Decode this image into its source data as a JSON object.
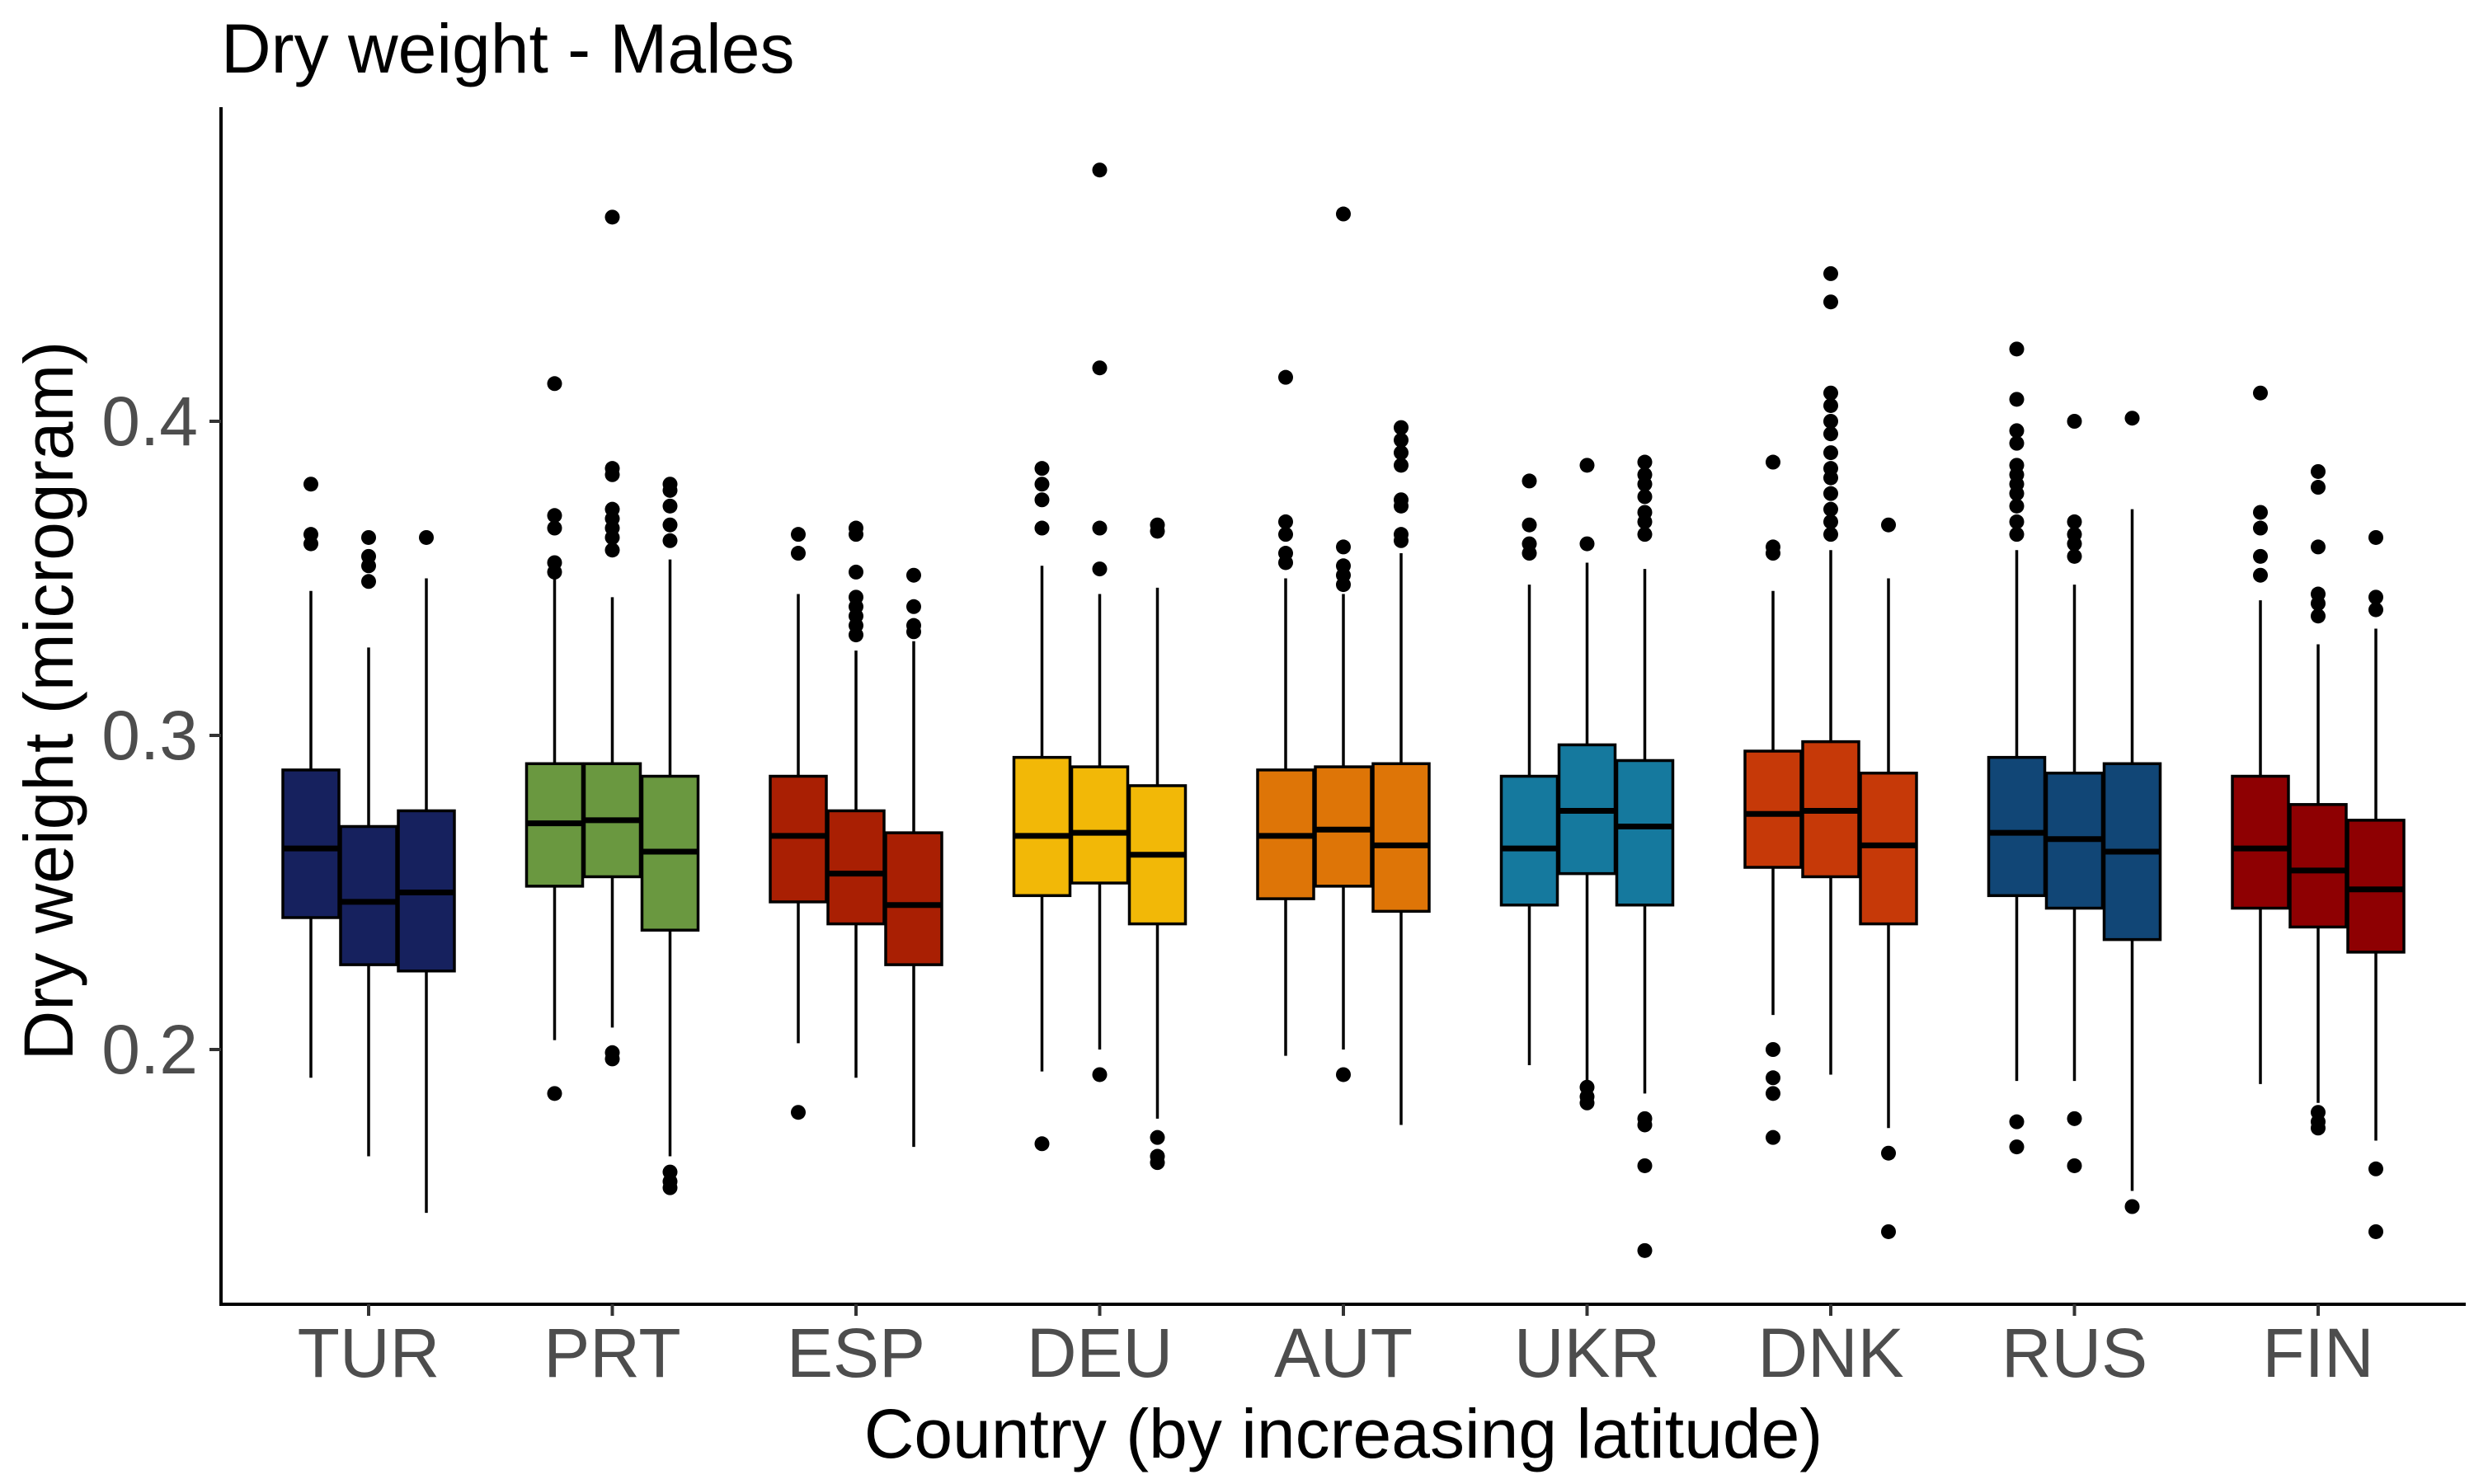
{
  "chart_data": {
    "type": "boxplot",
    "title": "Dry weight - Males",
    "xlabel": "Country (by increasing latitude)",
    "ylabel": "Dry weight (microgram)",
    "ylim": [
      0.12,
      0.495
    ],
    "yticks": [
      0.2,
      0.3,
      0.4
    ],
    "ytick_labels": [
      "0.2",
      "0.3",
      "0.4"
    ],
    "grid": false,
    "legend": "none",
    "categories": [
      "TUR",
      "PRT",
      "ESP",
      "DEU",
      "AUT",
      "UKR",
      "DNK",
      "RUS",
      "FIN"
    ],
    "colors": {
      "TUR": "#16215e",
      "PRT": "#6a9840",
      "ESP": "#a91f03",
      "DEU": "#f2b807",
      "AUT": "#de7507",
      "UKR": "#15799e",
      "DNK": "#c63908",
      "RUS": "#114676",
      "FIN": "#8e0002"
    },
    "groups": [
      {
        "country": "TUR",
        "boxes": [
          {
            "whislo": 0.191,
            "q1": 0.242,
            "med": 0.264,
            "q3": 0.289,
            "whishi": 0.346,
            "fliers": [
              0.361,
              0.364,
              0.38
            ]
          },
          {
            "whislo": 0.166,
            "q1": 0.227,
            "med": 0.247,
            "q3": 0.271,
            "whishi": 0.328,
            "fliers": [
              0.349,
              0.354,
              0.357,
              0.363
            ]
          },
          {
            "whislo": 0.148,
            "q1": 0.225,
            "med": 0.25,
            "q3": 0.276,
            "whishi": 0.35,
            "fliers": [
              0.363
            ]
          }
        ]
      },
      {
        "country": "PRT",
        "boxes": [
          {
            "whislo": 0.203,
            "q1": 0.252,
            "med": 0.272,
            "q3": 0.291,
            "whishi": 0.35,
            "fliers": [
              0.186,
              0.352,
              0.355,
              0.366,
              0.37,
              0.412
            ]
          },
          {
            "whislo": 0.207,
            "q1": 0.255,
            "med": 0.273,
            "q3": 0.291,
            "whishi": 0.344,
            "fliers": [
              0.197,
              0.199,
              0.359,
              0.363,
              0.366,
              0.369,
              0.372,
              0.383,
              0.385,
              0.465
            ]
          },
          {
            "whislo": 0.166,
            "q1": 0.238,
            "med": 0.263,
            "q3": 0.287,
            "whishi": 0.356,
            "fliers": [
              0.156,
              0.158,
              0.161,
              0.362,
              0.367,
              0.373,
              0.378,
              0.38
            ]
          }
        ]
      },
      {
        "country": "ESP",
        "boxes": [
          {
            "whislo": 0.202,
            "q1": 0.247,
            "med": 0.268,
            "q3": 0.287,
            "whishi": 0.345,
            "fliers": [
              0.18,
              0.358,
              0.364
            ]
          },
          {
            "whislo": 0.191,
            "q1": 0.24,
            "med": 0.256,
            "q3": 0.276,
            "whishi": 0.327,
            "fliers": [
              0.332,
              0.335,
              0.338,
              0.341,
              0.344,
              0.352,
              0.364,
              0.366
            ]
          },
          {
            "whislo": 0.169,
            "q1": 0.227,
            "med": 0.246,
            "q3": 0.269,
            "whishi": 0.33,
            "fliers": [
              0.333,
              0.335,
              0.341,
              0.351
            ]
          }
        ]
      },
      {
        "country": "DEU",
        "boxes": [
          {
            "whislo": 0.193,
            "q1": 0.249,
            "med": 0.268,
            "q3": 0.293,
            "whishi": 0.354,
            "fliers": [
              0.17,
              0.366,
              0.375,
              0.38,
              0.385
            ]
          },
          {
            "whislo": 0.2,
            "q1": 0.253,
            "med": 0.269,
            "q3": 0.29,
            "whishi": 0.345,
            "fliers": [
              0.192,
              0.353,
              0.366,
              0.417,
              0.48
            ]
          },
          {
            "whislo": 0.178,
            "q1": 0.24,
            "med": 0.262,
            "q3": 0.284,
            "whishi": 0.347,
            "fliers": [
              0.164,
              0.166,
              0.172,
              0.365,
              0.367
            ]
          }
        ]
      },
      {
        "country": "AUT",
        "boxes": [
          {
            "whislo": 0.198,
            "q1": 0.248,
            "med": 0.268,
            "q3": 0.289,
            "whishi": 0.35,
            "fliers": [
              0.355,
              0.358,
              0.364,
              0.368,
              0.414
            ]
          },
          {
            "whislo": 0.2,
            "q1": 0.252,
            "med": 0.27,
            "q3": 0.29,
            "whishi": 0.345,
            "fliers": [
              0.192,
              0.348,
              0.351,
              0.354,
              0.36,
              0.466
            ]
          },
          {
            "whislo": 0.176,
            "q1": 0.244,
            "med": 0.265,
            "q3": 0.291,
            "whishi": 0.358,
            "fliers": [
              0.362,
              0.364,
              0.373,
              0.375,
              0.386,
              0.39,
              0.394,
              0.398
            ]
          }
        ]
      },
      {
        "country": "UKR",
        "boxes": [
          {
            "whislo": 0.195,
            "q1": 0.246,
            "med": 0.264,
            "q3": 0.287,
            "whishi": 0.348,
            "fliers": [
              0.358,
              0.361,
              0.367,
              0.381
            ]
          },
          {
            "whislo": 0.19,
            "q1": 0.256,
            "med": 0.276,
            "q3": 0.297,
            "whishi": 0.355,
            "fliers": [
              0.183,
              0.185,
              0.188,
              0.361,
              0.386
            ]
          },
          {
            "whislo": 0.186,
            "q1": 0.246,
            "med": 0.271,
            "q3": 0.292,
            "whishi": 0.353,
            "fliers": [
              0.136,
              0.163,
              0.176,
              0.178,
              0.364,
              0.368,
              0.371,
              0.376,
              0.38,
              0.383,
              0.387
            ]
          }
        ]
      },
      {
        "country": "DNK",
        "boxes": [
          {
            "whislo": 0.211,
            "q1": 0.258,
            "med": 0.275,
            "q3": 0.295,
            "whishi": 0.346,
            "fliers": [
              0.172,
              0.186,
              0.191,
              0.2,
              0.358,
              0.36,
              0.387
            ]
          },
          {
            "whislo": 0.192,
            "q1": 0.255,
            "med": 0.276,
            "q3": 0.298,
            "whishi": 0.359,
            "fliers": [
              0.364,
              0.368,
              0.372,
              0.377,
              0.382,
              0.385,
              0.39,
              0.396,
              0.4,
              0.405,
              0.409,
              0.438,
              0.447
            ]
          },
          {
            "whislo": 0.175,
            "q1": 0.24,
            "med": 0.265,
            "q3": 0.288,
            "whishi": 0.35,
            "fliers": [
              0.142,
              0.167,
              0.367
            ]
          }
        ]
      },
      {
        "country": "RUS",
        "boxes": [
          {
            "whislo": 0.19,
            "q1": 0.249,
            "med": 0.269,
            "q3": 0.293,
            "whishi": 0.359,
            "fliers": [
              0.169,
              0.177,
              0.364,
              0.368,
              0.373,
              0.377,
              0.38,
              0.383,
              0.386,
              0.393,
              0.397,
              0.407,
              0.423
            ]
          },
          {
            "whislo": 0.19,
            "q1": 0.245,
            "med": 0.267,
            "q3": 0.288,
            "whishi": 0.348,
            "fliers": [
              0.163,
              0.178,
              0.357,
              0.361,
              0.364,
              0.368,
              0.4
            ]
          },
          {
            "whislo": 0.155,
            "q1": 0.235,
            "med": 0.263,
            "q3": 0.291,
            "whishi": 0.372,
            "fliers": [
              0.15,
              0.401
            ]
          }
        ]
      },
      {
        "country": "FIN",
        "boxes": [
          {
            "whislo": 0.189,
            "q1": 0.245,
            "med": 0.264,
            "q3": 0.287,
            "whishi": 0.343,
            "fliers": [
              0.351,
              0.357,
              0.366,
              0.371,
              0.409
            ]
          },
          {
            "whislo": 0.183,
            "q1": 0.239,
            "med": 0.257,
            "q3": 0.278,
            "whishi": 0.329,
            "fliers": [
              0.175,
              0.177,
              0.18,
              0.338,
              0.342,
              0.345,
              0.36,
              0.379,
              0.384
            ]
          },
          {
            "whislo": 0.171,
            "q1": 0.231,
            "med": 0.251,
            "q3": 0.273,
            "whishi": 0.334,
            "fliers": [
              0.142,
              0.162,
              0.34,
              0.344,
              0.363
            ]
          }
        ]
      }
    ]
  }
}
